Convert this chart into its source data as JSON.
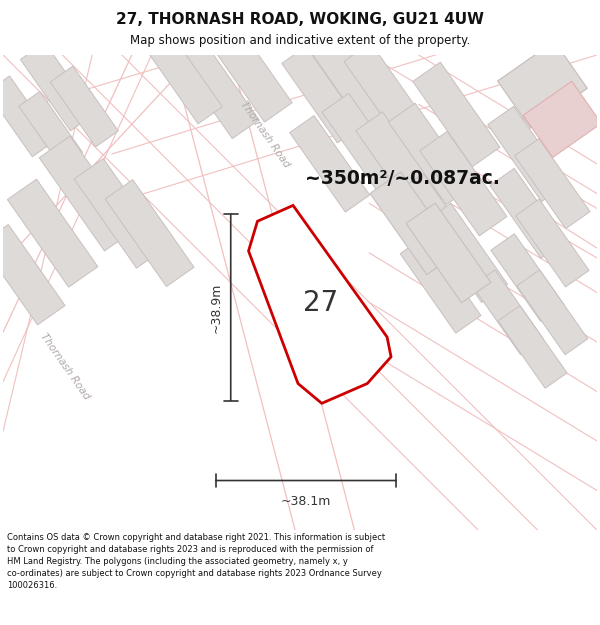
{
  "title": "27, THORNASH ROAD, WOKING, GU21 4UW",
  "subtitle": "Map shows position and indicative extent of the property.",
  "footer": "Contains OS data © Crown copyright and database right 2021. This information is subject to Crown copyright and database rights 2023 and is reproduced with the permission of\nHM Land Registry. The polygons (including the associated geometry, namely x, y co-ordinates) are subject to Crown copyright and database rights 2023 Ordnance Survey\n100026316.",
  "area_text": "~350m²/~0.087ac.",
  "plot_number": "27",
  "dim_width": "~38.1m",
  "dim_height": "~38.9m",
  "road_label_center": "Thornash Road",
  "road_label_left": "Thornash Road",
  "bg_color": "#ffffff",
  "map_bg": "#faf6f6",
  "plot_fill": "#ffffff",
  "plot_edge": "#cc0000",
  "gray_fill": "#dedad8",
  "gray_edge": "#c8c0be",
  "pink_line": "#f0c0c0",
  "dim_color": "#333333",
  "label_color": "#b0a8a8",
  "text_dark": "#111111"
}
